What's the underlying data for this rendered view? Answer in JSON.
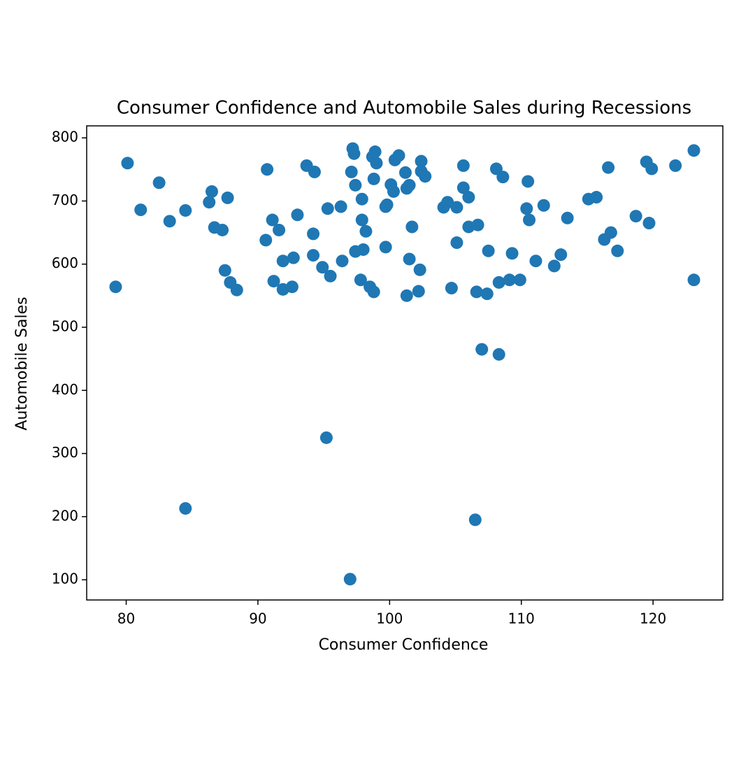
{
  "chart_data": {
    "type": "scatter",
    "title": "Consumer Confidence and Automobile Sales during Recessions",
    "x_label": "Consumer Confidence",
    "y_label": "Automobile Sales",
    "color": "#1f77b4",
    "xlim": [
      77.0,
      125.3
    ],
    "ylim": [
      68,
      819
    ],
    "xticks": [
      80,
      90,
      100,
      110,
      120
    ],
    "yticks": [
      100,
      200,
      300,
      400,
      500,
      600,
      700,
      800
    ],
    "x": [
      79.2,
      80.1,
      81.1,
      82.5,
      83.3,
      84.5,
      84.5,
      86.3,
      86.5,
      86.7,
      87.3,
      87.7,
      87.5,
      87.9,
      88.4,
      90.6,
      90.7,
      91.1,
      91.2,
      91.6,
      91.9,
      91.9,
      92.7,
      92.6,
      93.0,
      93.7,
      94.3,
      94.2,
      94.2,
      94.9,
      95.3,
      95.5,
      95.2,
      96.3,
      96.4,
      97.0,
      97.1,
      97.2,
      97.3,
      97.4,
      97.4,
      97.9,
      97.9,
      97.8,
      98.0,
      98.2,
      98.5,
      98.8,
      98.8,
      98.7,
      98.9,
      99.0,
      99.7,
      99.8,
      99.7,
      100.1,
      100.3,
      100.4,
      100.7,
      101.2,
      101.3,
      101.5,
      101.3,
      101.5,
      101.7,
      102.2,
      102.3,
      102.4,
      102.4,
      102.7,
      104.1,
      104.4,
      104.7,
      105.1,
      105.1,
      105.6,
      105.6,
      106.0,
      106.0,
      106.7,
      106.6,
      106.5,
      107.0,
      107.4,
      107.5,
      108.1,
      108.3,
      108.3,
      108.6,
      109.1,
      109.3,
      109.9,
      110.5,
      110.4,
      110.6,
      111.1,
      111.7,
      112.5,
      113.0,
      113.5,
      115.1,
      115.7,
      116.6,
      116.3,
      116.8,
      117.3,
      118.7,
      119.5,
      119.9,
      119.7,
      121.7,
      123.1,
      123.1
    ],
    "values": [
      564,
      760,
      686,
      729,
      668,
      685,
      213,
      698,
      715,
      658,
      654,
      705,
      590,
      571,
      559,
      638,
      750,
      670,
      573,
      654,
      605,
      560,
      610,
      564,
      678,
      756,
      746,
      648,
      614,
      595,
      688,
      581,
      325,
      691,
      605,
      101,
      746,
      783,
      775,
      725,
      620,
      703,
      670,
      575,
      623,
      652,
      564,
      556,
      735,
      770,
      778,
      760,
      691,
      694,
      627,
      726,
      715,
      765,
      772,
      745,
      720,
      725,
      550,
      608,
      659,
      557,
      591,
      763,
      747,
      739,
      690,
      698,
      562,
      634,
      690,
      756,
      721,
      706,
      659,
      662,
      556,
      195,
      465,
      553,
      621,
      751,
      571,
      457,
      738,
      575,
      617,
      575,
      731,
      688,
      670,
      605,
      693,
      597,
      615,
      673,
      703,
      706,
      753,
      639,
      650,
      621,
      676,
      762,
      751,
      665,
      756,
      780,
      575
    ]
  }
}
